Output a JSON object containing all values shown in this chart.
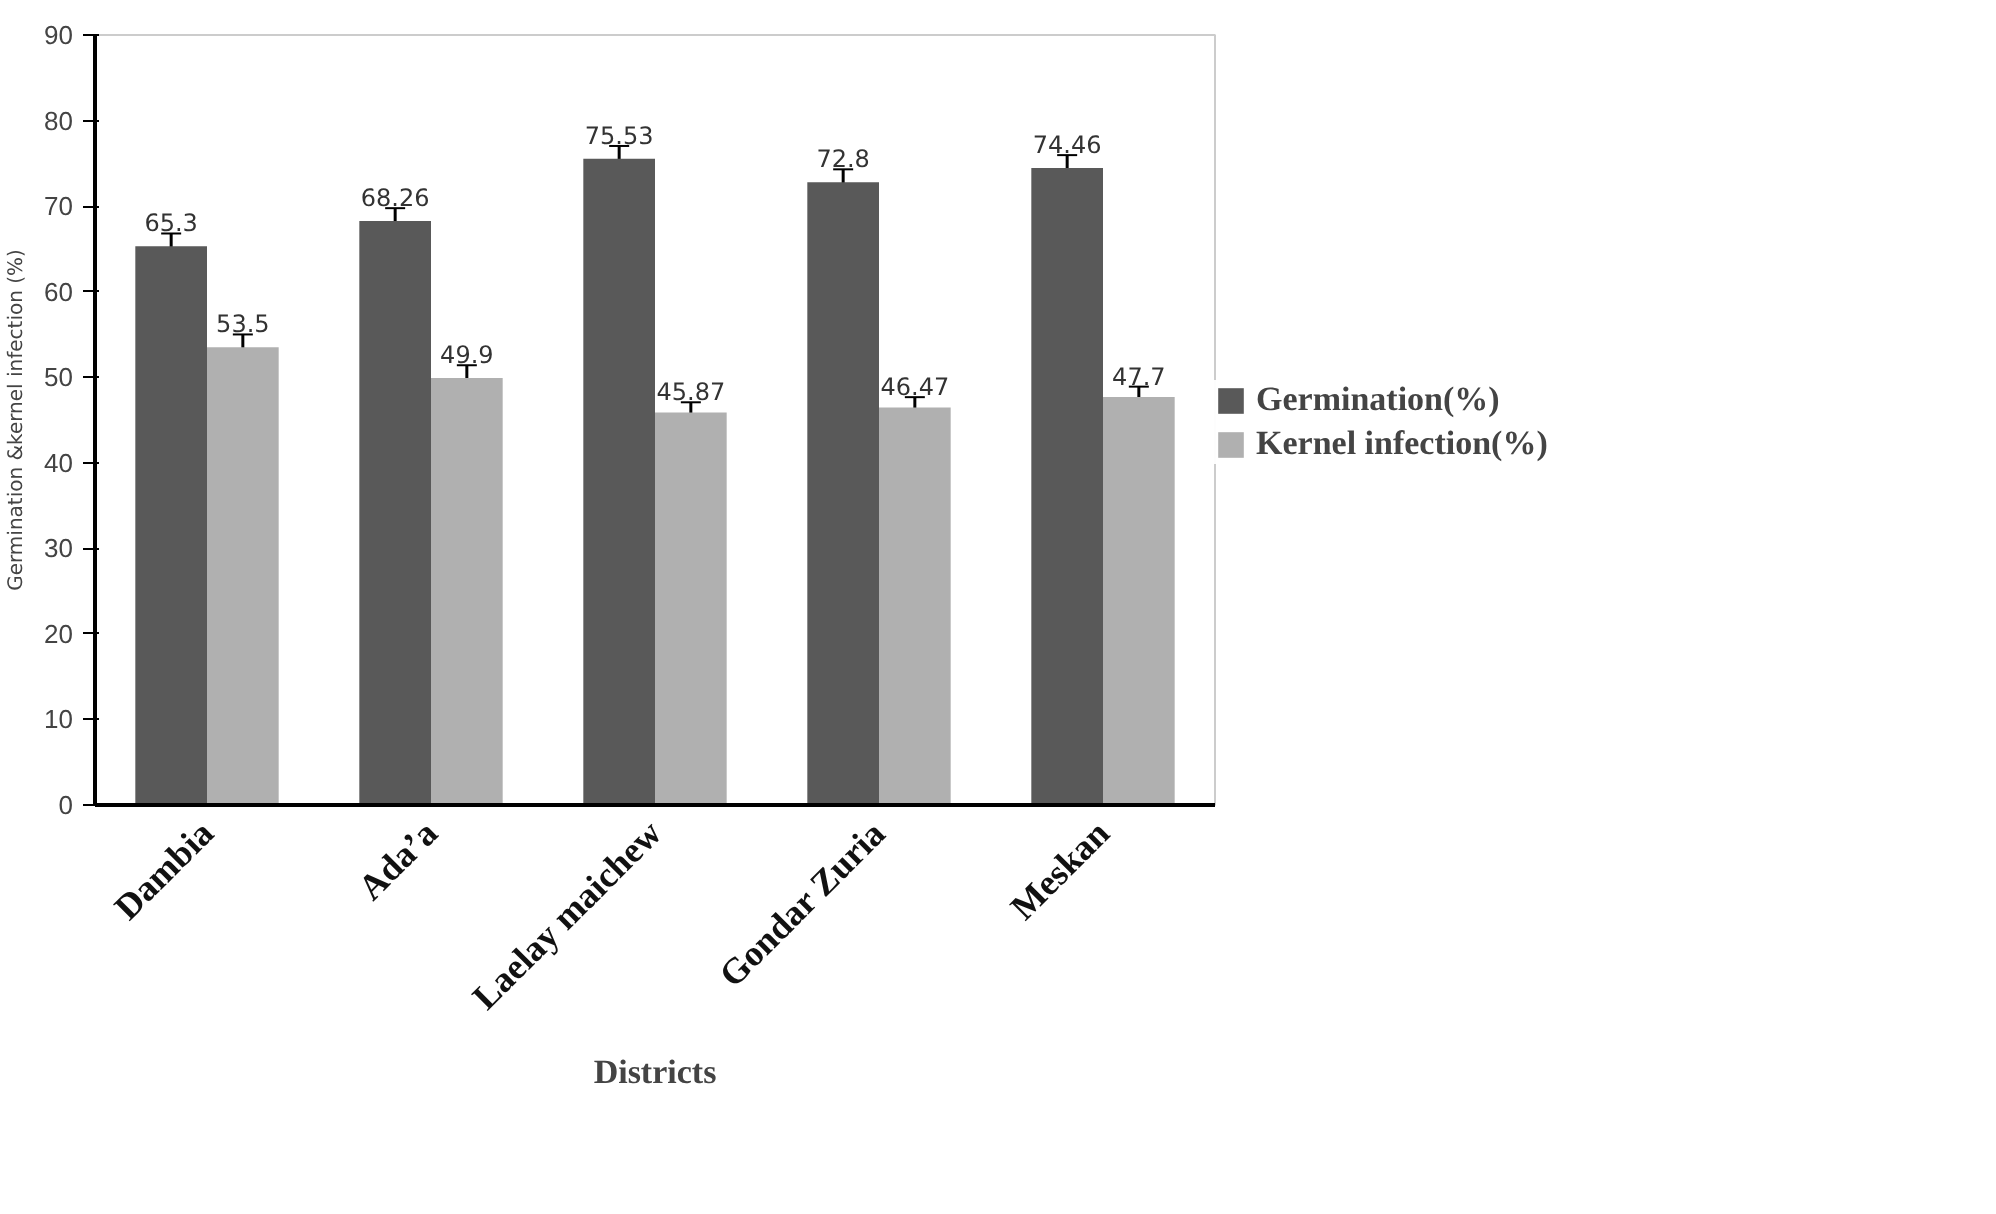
{
  "chart_data": {
    "type": "bar",
    "xlabel": "Districts",
    "ylabel": "Germination &kernel infection (%)",
    "categories": [
      "Dambia",
      "Ada’a",
      "Laelay maichew",
      "Gondar Zuria",
      "Meskan"
    ],
    "series": [
      {
        "name": "Germination(%)",
        "color": "#595959",
        "values": [
          65.3,
          68.26,
          75.53,
          72.8,
          74.46
        ],
        "errors": [
          1.5,
          1.5,
          1.5,
          1.5,
          1.5
        ]
      },
      {
        "name": "Kernel infection(%)",
        "color": "#b0b0b0",
        "values": [
          53.5,
          49.9,
          45.87,
          46.47,
          47.7
        ],
        "errors": [
          1.5,
          1.5,
          1.2,
          1.2,
          1.2
        ]
      }
    ],
    "ylim": [
      0,
      90
    ],
    "yticks": [
      0,
      10,
      20,
      30,
      40,
      50,
      60,
      70,
      80,
      90
    ],
    "grid": false,
    "legend": "right",
    "data_labels": true
  }
}
